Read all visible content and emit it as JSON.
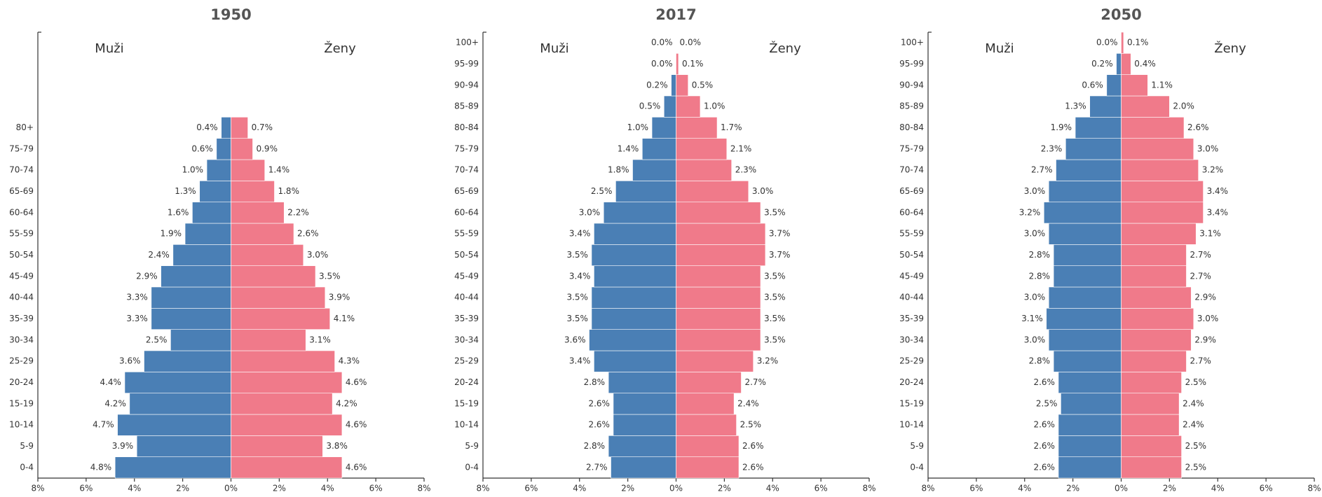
{
  "chart_data": [
    {
      "type": "pyramid",
      "title": "1950",
      "categories": [
        "0-4",
        "5-9",
        "10-14",
        "15-19",
        "20-24",
        "25-29",
        "30-34",
        "35-39",
        "40-44",
        "45-49",
        "50-54",
        "55-59",
        "60-64",
        "65-69",
        "70-74",
        "75-79",
        "80+",
        null,
        null,
        null,
        null
      ],
      "series": [
        {
          "name": "Muži",
          "color": "#4a7fb5",
          "values": [
            4.8,
            3.9,
            4.7,
            4.2,
            4.4,
            3.6,
            2.5,
            3.3,
            3.3,
            2.9,
            2.4,
            1.9,
            1.6,
            1.3,
            1.0,
            0.6,
            0.4,
            null,
            null,
            null,
            null
          ],
          "value_labels": [
            "4.8%",
            "3.9%",
            "4.7%",
            "4.2%",
            "4.4%",
            "3.6%",
            "2.5%",
            "3.3%",
            "3.3%",
            "2.9%",
            "2.4%",
            "1.9%",
            "1.6%",
            "1.3%",
            "1.0%",
            "0.6%",
            "0.4%",
            null,
            null,
            null,
            null
          ]
        },
        {
          "name": "Ženy",
          "color": "#f07a8a",
          "values": [
            4.6,
            3.8,
            4.6,
            4.2,
            4.6,
            4.3,
            3.1,
            4.1,
            3.9,
            3.5,
            3.0,
            2.6,
            2.2,
            1.8,
            1.4,
            0.9,
            0.7,
            null,
            null,
            null,
            null
          ],
          "value_labels": [
            "4.6%",
            "3.8%",
            "4.6%",
            "4.2%",
            "4.6%",
            "4.3%",
            "3.1%",
            "4.1%",
            "3.9%",
            "3.5%",
            "3.0%",
            "2.6%",
            "2.2%",
            "1.8%",
            "1.4%",
            "0.9%",
            "0.7%",
            null,
            null,
            null,
            null
          ]
        }
      ],
      "xlim": [
        -8,
        8
      ],
      "xticks": [
        {
          "value": -8,
          "label": "8%"
        },
        {
          "value": -6,
          "label": "6%"
        },
        {
          "value": -4,
          "label": "4%"
        },
        {
          "value": -2,
          "label": "2%"
        },
        {
          "value": 0,
          "label": "0%"
        },
        {
          "value": 2,
          "label": "2%"
        },
        {
          "value": 4,
          "label": "4%"
        },
        {
          "value": 6,
          "label": "6%"
        },
        {
          "value": 8,
          "label": "8%"
        }
      ]
    },
    {
      "type": "pyramid",
      "title": "2017",
      "categories": [
        "0-4",
        "5-9",
        "10-14",
        "15-19",
        "20-24",
        "25-29",
        "30-34",
        "35-39",
        "40-44",
        "45-49",
        "50-54",
        "55-59",
        "60-64",
        "65-69",
        "70-74",
        "75-79",
        "80-84",
        "85-89",
        "90-94",
        "95-99",
        "100+"
      ],
      "series": [
        {
          "name": "Muži",
          "color": "#4a7fb5",
          "values": [
            2.7,
            2.8,
            2.6,
            2.6,
            2.8,
            3.4,
            3.6,
            3.5,
            3.5,
            3.4,
            3.5,
            3.4,
            3.0,
            2.5,
            1.8,
            1.4,
            1.0,
            0.5,
            0.2,
            0.0,
            0.0
          ],
          "value_labels": [
            "2.7%",
            "2.8%",
            "2.6%",
            "2.6%",
            "2.8%",
            "3.4%",
            "3.6%",
            "3.5%",
            "3.5%",
            "3.4%",
            "3.5%",
            "3.4%",
            "3.0%",
            "2.5%",
            "1.8%",
            "1.4%",
            "1.0%",
            "0.5%",
            "0.2%",
            "0.0%",
            "0.0%"
          ]
        },
        {
          "name": "Ženy",
          "color": "#f07a8a",
          "values": [
            2.6,
            2.6,
            2.5,
            2.4,
            2.7,
            3.2,
            3.5,
            3.5,
            3.5,
            3.5,
            3.7,
            3.7,
            3.5,
            3.0,
            2.3,
            2.1,
            1.7,
            1.0,
            0.5,
            0.1,
            0.0
          ],
          "value_labels": [
            "2.6%",
            "2.6%",
            "2.5%",
            "2.4%",
            "2.7%",
            "3.2%",
            "3.5%",
            "3.5%",
            "3.5%",
            "3.5%",
            "3.7%",
            "3.7%",
            "3.5%",
            "3.0%",
            "2.3%",
            "2.1%",
            "1.7%",
            "1.0%",
            "0.5%",
            "0.1%",
            "0.0%"
          ]
        }
      ],
      "xlim": [
        -8,
        8
      ],
      "xticks": [
        {
          "value": -8,
          "label": "8%"
        },
        {
          "value": -6,
          "label": "6%"
        },
        {
          "value": -4,
          "label": "4%"
        },
        {
          "value": -2,
          "label": "2%"
        },
        {
          "value": 0,
          "label": "0%"
        },
        {
          "value": 2,
          "label": "2%"
        },
        {
          "value": 4,
          "label": "4%"
        },
        {
          "value": 6,
          "label": "6%"
        },
        {
          "value": 8,
          "label": "8%"
        }
      ]
    },
    {
      "type": "pyramid",
      "title": "2050",
      "categories": [
        "0-4",
        "5-9",
        "10-14",
        "15-19",
        "20-24",
        "25-29",
        "30-34",
        "35-39",
        "40-44",
        "45-49",
        "50-54",
        "55-59",
        "60-64",
        "65-69",
        "70-74",
        "75-79",
        "80-84",
        "85-89",
        "90-94",
        "95-99",
        "100+"
      ],
      "series": [
        {
          "name": "Muži",
          "color": "#4a7fb5",
          "values": [
            2.6,
            2.6,
            2.6,
            2.5,
            2.6,
            2.8,
            3.0,
            3.1,
            3.0,
            2.8,
            2.8,
            3.0,
            3.2,
            3.0,
            2.7,
            2.3,
            1.9,
            1.3,
            0.6,
            0.2,
            0.0
          ],
          "value_labels": [
            "2.6%",
            "2.6%",
            "2.6%",
            "2.5%",
            "2.6%",
            "2.8%",
            "3.0%",
            "3.1%",
            "3.0%",
            "2.8%",
            "2.8%",
            "3.0%",
            "3.2%",
            "3.0%",
            "2.7%",
            "2.3%",
            "1.9%",
            "1.3%",
            "0.6%",
            "0.2%",
            "0.0%"
          ]
        },
        {
          "name": "Ženy",
          "color": "#f07a8a",
          "values": [
            2.5,
            2.5,
            2.4,
            2.4,
            2.5,
            2.7,
            2.9,
            3.0,
            2.9,
            2.7,
            2.7,
            3.1,
            3.4,
            3.4,
            3.2,
            3.0,
            2.6,
            2.0,
            1.1,
            0.4,
            0.1
          ],
          "value_labels": [
            "2.5%",
            "2.5%",
            "2.4%",
            "2.4%",
            "2.5%",
            "2.7%",
            "2.9%",
            "3.0%",
            "2.9%",
            "2.7%",
            "2.7%",
            "3.1%",
            "3.4%",
            "3.4%",
            "3.2%",
            "3.0%",
            "2.6%",
            "2.0%",
            "1.1%",
            "0.4%",
            "0.1%"
          ]
        }
      ],
      "xlim": [
        -8,
        8
      ],
      "xticks": [
        {
          "value": -8,
          "label": "8%"
        },
        {
          "value": -6,
          "label": "6%"
        },
        {
          "value": -4,
          "label": "4%"
        },
        {
          "value": -2,
          "label": "2%"
        },
        {
          "value": 0,
          "label": "0%"
        },
        {
          "value": 2,
          "label": "2%"
        },
        {
          "value": 4,
          "label": "4%"
        },
        {
          "value": 6,
          "label": "6%"
        },
        {
          "value": 8,
          "label": "8%"
        }
      ]
    }
  ]
}
